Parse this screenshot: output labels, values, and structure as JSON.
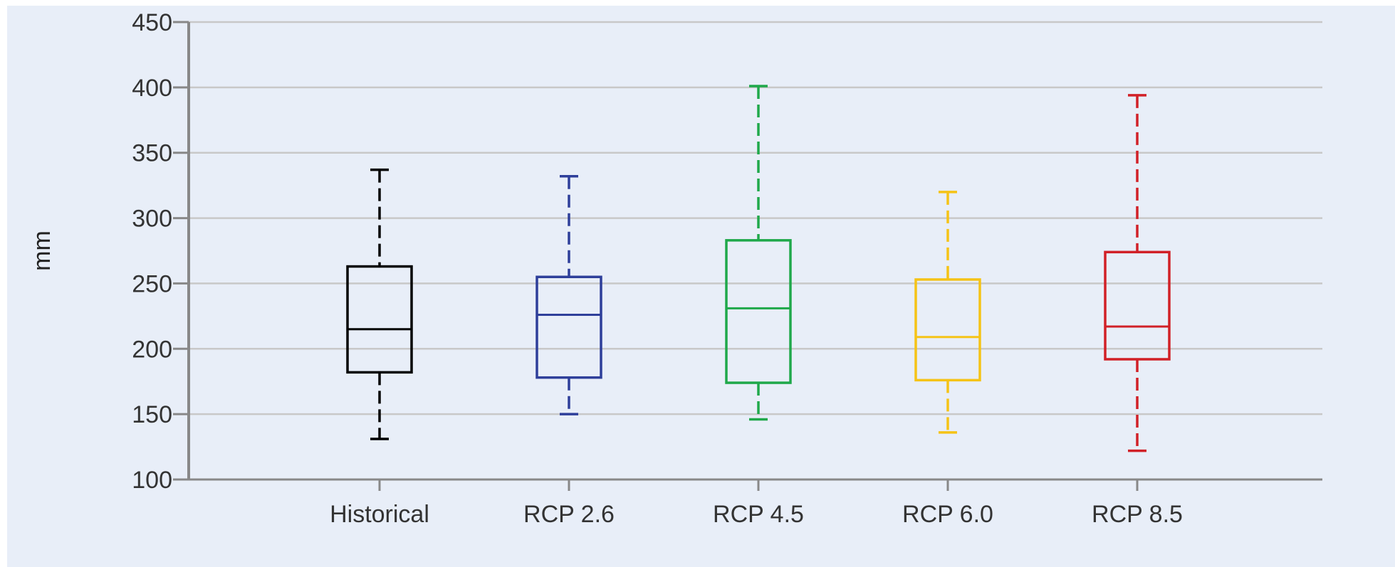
{
  "chart_data": {
    "type": "boxplot",
    "title": "",
    "xlabel": "",
    "ylabel": "mm",
    "ylim": [
      100,
      450
    ],
    "yticks": [
      "100",
      "150",
      "200",
      "250",
      "300",
      "350",
      "400",
      "450"
    ],
    "grid": true,
    "legend": "none",
    "categories": [
      "Historical",
      "RCP 2.6",
      "RCP 4.5",
      "RCP 6.0",
      "RCP 8.5"
    ],
    "boxes": [
      {
        "category": "Historical",
        "min": 131,
        "q1": 182,
        "median": 215,
        "q3": 263,
        "max": 337,
        "color": "#000000"
      },
      {
        "category": "RCP 2.6",
        "min": 150,
        "q1": 178,
        "median": 226,
        "q3": 255,
        "max": 332,
        "color": "#2e3f9a"
      },
      {
        "category": "RCP 4.5",
        "min": 146,
        "q1": 174,
        "median": 231,
        "q3": 283,
        "max": 401,
        "color": "#1fa84a"
      },
      {
        "category": "RCP 6.0",
        "min": 136,
        "q1": 176,
        "median": 209,
        "q3": 253,
        "max": 320,
        "color": "#f5c316"
      },
      {
        "category": "RCP 8.5",
        "min": 122,
        "q1": 192,
        "median": 217,
        "q3": 274,
        "max": 394,
        "color": "#d12027"
      }
    ]
  }
}
